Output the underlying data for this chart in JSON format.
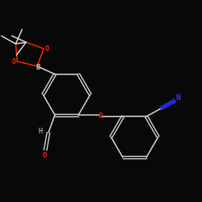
{
  "background_color": "#080808",
  "bond_color": "#d8d8d8",
  "atom_colors": {
    "O": "#ff2200",
    "B": "#cccccc",
    "N": "#3333ff",
    "C": "#d8d8d8"
  },
  "figsize": [
    2.5,
    2.5
  ],
  "dpi": 100
}
